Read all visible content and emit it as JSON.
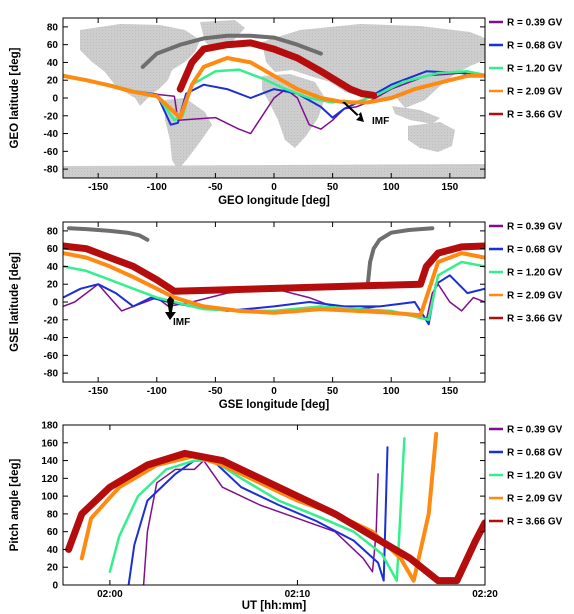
{
  "figure": {
    "rigidities": [
      "R = 0.39 GV",
      "R = 0.68 GV",
      "R = 1.20 GV",
      "R = 2.09 GV",
      "R = 3.66 GV"
    ],
    "colors": {
      "r039": "#7f0f8f",
      "r068": "#1a2fd6",
      "r120": "#33f08c",
      "r209": "#ff8a12",
      "r366": "#b50d0d",
      "land": "#c8c8c8",
      "grey_track": "#6e6e6e",
      "imf_arrow": "#000000"
    },
    "background": "world-map (land masses, grey)"
  },
  "chart_data": [
    {
      "type": "line",
      "panel": "geo",
      "xlabel": "GEO longitude [deg]",
      "ylabel": "GEO latitude [deg]",
      "xlim": [
        -180,
        180
      ],
      "ylim": [
        -90,
        90
      ],
      "xticks": [
        -150,
        -100,
        -50,
        0,
        50,
        100,
        150
      ],
      "yticks": [
        -80,
        -60,
        -40,
        -20,
        0,
        20,
        40,
        60,
        80
      ],
      "grid": false,
      "legend_position": "right",
      "annotation": "IMF",
      "series": [
        {
          "name": "R = 0.39 GV",
          "color_key": "r039",
          "width": 1.5,
          "x": [
            -180,
            -160,
            -140,
            -120,
            -100,
            -85,
            -82,
            -70,
            -50,
            -30,
            -20,
            -10,
            0,
            10,
            20,
            30,
            40,
            50,
            60,
            70,
            80,
            100,
            130,
            160,
            180
          ],
          "y": [
            24,
            20,
            14,
            8,
            4,
            2,
            -25,
            -24,
            -22,
            -35,
            -40,
            -20,
            0,
            10,
            0,
            -30,
            -35,
            -25,
            -12,
            -10,
            -5,
            10,
            25,
            28,
            24
          ]
        },
        {
          "name": "R = 0.68 GV",
          "color_key": "r068",
          "width": 2,
          "x": [
            -180,
            -160,
            -140,
            -120,
            -100,
            -88,
            -82,
            -75,
            -60,
            -40,
            -20,
            0,
            20,
            40,
            50,
            60,
            80,
            100,
            130,
            160,
            180
          ],
          "y": [
            25,
            20,
            15,
            8,
            4,
            -30,
            -28,
            5,
            15,
            10,
            0,
            10,
            5,
            -10,
            -22,
            -12,
            0,
            15,
            30,
            28,
            25
          ]
        },
        {
          "name": "R = 1.20 GV",
          "color_key": "r120",
          "width": 2.5,
          "x": [
            -180,
            -160,
            -140,
            -120,
            -100,
            -85,
            -78,
            -70,
            -50,
            -30,
            -10,
            10,
            30,
            50,
            60,
            70,
            90,
            110,
            140,
            165,
            180
          ],
          "y": [
            26,
            20,
            15,
            8,
            3,
            -25,
            -20,
            15,
            30,
            32,
            22,
            10,
            0,
            -5,
            -3,
            -5,
            5,
            18,
            28,
            30,
            26
          ]
        },
        {
          "name": "R = 2.09 GV",
          "color_key": "r209",
          "width": 4,
          "x": [
            -180,
            -160,
            -140,
            -120,
            -100,
            -80,
            -70,
            -60,
            -40,
            -20,
            0,
            20,
            40,
            60,
            80,
            100,
            120,
            150,
            165,
            180
          ],
          "y": [
            25,
            20,
            14,
            7,
            2,
            -22,
            15,
            35,
            45,
            40,
            25,
            10,
            0,
            -5,
            -5,
            0,
            10,
            20,
            25,
            25
          ]
        },
        {
          "name": "R = 3.66 GV",
          "color_key": "r366",
          "width": 7,
          "x": [
            -80,
            -70,
            -60,
            -40,
            -20,
            0,
            20,
            40,
            55,
            65,
            75,
            85
          ],
          "y": [
            10,
            40,
            55,
            60,
            62,
            55,
            45,
            30,
            18,
            10,
            5,
            3
          ]
        }
      ],
      "extra_tracks": [
        {
          "color_key": "grey_track",
          "width": 4,
          "x": [
            -112,
            -100,
            -80,
            -60,
            -40,
            -20,
            0,
            20,
            40
          ],
          "y": [
            35,
            50,
            60,
            67,
            70,
            70,
            68,
            60,
            50
          ]
        }
      ]
    },
    {
      "type": "line",
      "panel": "gse",
      "xlabel": "GSE longitude [deg]",
      "ylabel": "GSE latitude [deg]",
      "xlim": [
        -180,
        180
      ],
      "ylim": [
        -90,
        90
      ],
      "xticks": [
        -150,
        -100,
        -50,
        0,
        50,
        100,
        150
      ],
      "yticks": [
        -80,
        -60,
        -40,
        -20,
        0,
        20,
        40,
        60,
        80
      ],
      "grid": false,
      "legend_position": "right",
      "annotation": "IMF",
      "series": [
        {
          "name": "R = 0.39 GV",
          "color_key": "r039",
          "width": 1.5,
          "x": [
            -180,
            -170,
            -160,
            -150,
            -140,
            -130,
            -120,
            -110,
            -100,
            -90,
            -70,
            -40,
            0,
            30,
            60,
            90,
            120,
            130,
            135,
            140,
            150,
            160,
            170,
            180
          ],
          "y": [
            -5,
            0,
            10,
            20,
            5,
            -10,
            -5,
            0,
            5,
            -5,
            0,
            10,
            15,
            5,
            -10,
            -5,
            0,
            -20,
            10,
            20,
            0,
            -10,
            5,
            0
          ]
        },
        {
          "name": "R = 0.68 GV",
          "color_key": "r068",
          "width": 2,
          "x": [
            -180,
            -165,
            -150,
            -135,
            -120,
            -105,
            -90,
            -70,
            -40,
            0,
            30,
            60,
            90,
            120,
            132,
            138,
            150,
            165,
            180
          ],
          "y": [
            5,
            15,
            20,
            10,
            -5,
            5,
            0,
            -5,
            -10,
            -5,
            0,
            -5,
            -5,
            0,
            -25,
            20,
            30,
            10,
            15
          ]
        },
        {
          "name": "R = 1.20 GV",
          "color_key": "r120",
          "width": 2.5,
          "x": [
            -180,
            -160,
            -140,
            -120,
            -100,
            -85,
            -60,
            -30,
            0,
            40,
            70,
            100,
            125,
            132,
            140,
            160,
            180
          ],
          "y": [
            40,
            35,
            25,
            15,
            5,
            0,
            -8,
            -10,
            -10,
            -5,
            -8,
            -10,
            -18,
            -20,
            30,
            45,
            40
          ]
        },
        {
          "name": "R = 2.09 GV",
          "color_key": "r209",
          "width": 4,
          "x": [
            -180,
            -160,
            -140,
            -120,
            -100,
            -85,
            -60,
            -30,
            0,
            40,
            70,
            100,
            125,
            130,
            140,
            160,
            180
          ],
          "y": [
            55,
            50,
            40,
            28,
            15,
            5,
            -5,
            -10,
            -12,
            -8,
            -10,
            -12,
            -15,
            5,
            45,
            55,
            50
          ]
        },
        {
          "name": "R = 3.66 GV",
          "color_key": "r366",
          "width": 7,
          "x": [
            -180,
            -160,
            -140,
            -120,
            -100,
            -85,
            125,
            130,
            140,
            160,
            180
          ],
          "y": [
            63,
            60,
            50,
            40,
            25,
            12,
            20,
            40,
            55,
            62,
            63
          ]
        }
      ],
      "extra_tracks": [
        {
          "color_key": "grey_track",
          "width": 4,
          "x": [
            -175,
            -160,
            -140,
            -125,
            -115,
            -108
          ],
          "y": [
            83,
            82,
            80,
            78,
            75,
            70
          ]
        },
        {
          "color_key": "grey_track",
          "width": 4,
          "x": [
            80,
            82,
            85,
            90,
            100,
            115,
            135
          ],
          "y": [
            20,
            45,
            60,
            70,
            78,
            81,
            83
          ]
        }
      ]
    },
    {
      "type": "line",
      "panel": "pitch",
      "xlabel": "UT [hh:mm]",
      "ylabel": "Pitch angle [deg]",
      "xlim": [
        -2.5,
        20
      ],
      "ylim": [
        0,
        180
      ],
      "xtick_values": [
        0,
        10,
        20
      ],
      "xtick_labels": [
        "02:00",
        "02:10",
        "02:20"
      ],
      "yticks": [
        0,
        20,
        40,
        60,
        80,
        100,
        120,
        140,
        160,
        180
      ],
      "grid": false,
      "legend_position": "right",
      "series": [
        {
          "name": "R = 0.39 GV",
          "color_key": "r039",
          "width": 1.5,
          "x": [
            1.8,
            2.0,
            2.5,
            3.5,
            4.5,
            5.0,
            6.0,
            8.0,
            10.0,
            12.0,
            13.5,
            14.0,
            14.2,
            14.3
          ],
          "y": [
            0,
            60,
            115,
            130,
            130,
            140,
            110,
            90,
            75,
            60,
            30,
            15,
            60,
            125
          ]
        },
        {
          "name": "R = 0.68 GV",
          "color_key": "r068",
          "width": 2,
          "x": [
            1.0,
            1.3,
            2.0,
            3.5,
            4.5,
            5.5,
            7.0,
            9.0,
            11.0,
            13.0,
            14.3,
            14.6,
            14.8
          ],
          "y": [
            0,
            45,
            95,
            125,
            140,
            140,
            110,
            90,
            72,
            50,
            25,
            5,
            155
          ]
        },
        {
          "name": "R = 1.20 GV",
          "color_key": "r120",
          "width": 2.5,
          "x": [
            0.0,
            0.5,
            1.5,
            3.0,
            4.5,
            5.5,
            7.0,
            9.0,
            11.0,
            13.0,
            14.5,
            15.3,
            15.7
          ],
          "y": [
            15,
            55,
            100,
            130,
            140,
            140,
            120,
            95,
            78,
            60,
            35,
            5,
            165
          ]
        },
        {
          "name": "R = 2.09 GV",
          "color_key": "r209",
          "width": 4,
          "x": [
            -1.5,
            -1.0,
            0.5,
            2.5,
            4.5,
            6.0,
            8.0,
            10.0,
            12.0,
            14.0,
            15.5,
            16.2,
            17.0,
            17.4
          ],
          "y": [
            30,
            75,
            110,
            135,
            145,
            135,
            115,
            95,
            80,
            60,
            30,
            5,
            80,
            170
          ]
        },
        {
          "name": "R = 3.66 GV",
          "color_key": "r366",
          "width": 7,
          "x": [
            -2.2,
            -1.5,
            0.0,
            2.0,
            4.0,
            6.0,
            8.0,
            10.0,
            12.0,
            14.0,
            16.0,
            17.5,
            18.5,
            19.5,
            20.0
          ],
          "y": [
            40,
            80,
            110,
            135,
            148,
            140,
            120,
            100,
            80,
            55,
            30,
            5,
            5,
            50,
            70
          ]
        }
      ]
    }
  ]
}
